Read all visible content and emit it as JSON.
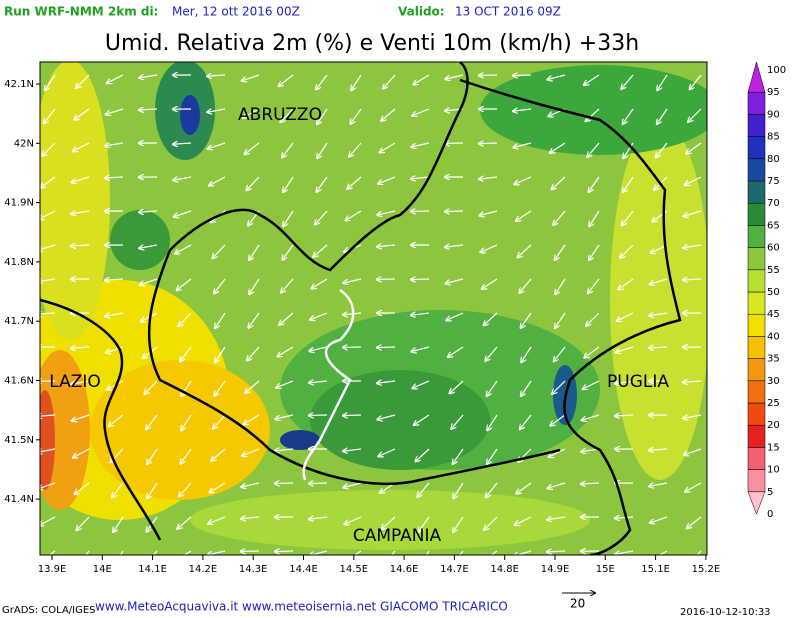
{
  "header": {
    "run_label": "Run WRF-NMM 2km di:",
    "run_date": "Mer, 12 ott 2016 00Z",
    "valid_label": "Valido:",
    "valid_date": "13 OCT 2016 09Z"
  },
  "title": "Umid. Relativa 2m (%) e Venti 10m (km/h) +33h",
  "map": {
    "regions": [
      "ABRUZZO",
      "LAZIO",
      "PUGLIA",
      "CAMPANIA"
    ],
    "lat_labels": [
      "42.1N",
      "42N",
      "41.9N",
      "41.8N",
      "41.7N",
      "41.6N",
      "41.5N",
      "41.4N"
    ],
    "lon_labels": [
      "13.9E",
      "14E",
      "14.1E",
      "14.2E",
      "14.3E",
      "14.4E",
      "14.5E",
      "14.6E",
      "14.7E",
      "14.8E",
      "14.9E",
      "15E",
      "15.1E",
      "15.2E"
    ]
  },
  "colorbar": {
    "labels": [
      0,
      5,
      10,
      15,
      20,
      25,
      30,
      35,
      40,
      45,
      50,
      55,
      60,
      65,
      70,
      75,
      80,
      85,
      90,
      95,
      100
    ]
  },
  "footer": {
    "grads": "GrADS: COLA/IGES",
    "credits": "www.MeteoAcquaviva.it www.meteoisernia.net GIACOMO TRICARICO",
    "wind_scale": "20",
    "timestamp": "2016-10-12-10:33"
  }
}
